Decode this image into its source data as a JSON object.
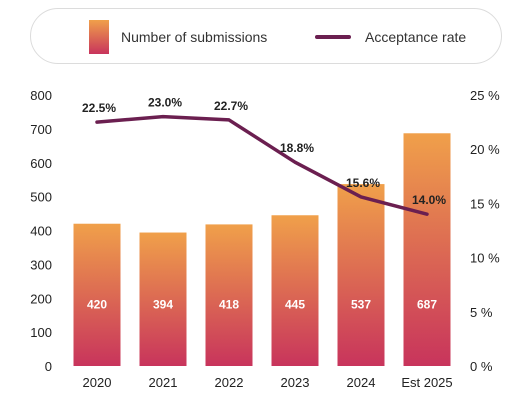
{
  "legend": {
    "bar_label": "Number of submissions",
    "line_label": "Acceptance rate"
  },
  "colors": {
    "bar_top": "#f0a04a",
    "bar_bottom": "#c8345c",
    "line": "#6b1f50",
    "text": "#222222"
  },
  "chart_data": {
    "type": "bar",
    "categories": [
      "2020",
      "2021",
      "2022",
      "2023",
      "2024",
      "Est 2025"
    ],
    "series": [
      {
        "name": "Number of submissions",
        "type": "bar",
        "axis": "left",
        "values": [
          420,
          394,
          418,
          445,
          537,
          687
        ],
        "data_labels": [
          "420",
          "394",
          "418",
          "445",
          "537",
          "687"
        ]
      },
      {
        "name": "Acceptance rate",
        "type": "line",
        "axis": "right",
        "values": [
          22.5,
          23.0,
          22.7,
          18.8,
          15.6,
          14.0
        ],
        "data_labels": [
          "22.5%",
          "23.0%",
          "22.7%",
          "18.8%",
          "15.6%",
          "14.0%"
        ]
      }
    ],
    "y_left": {
      "min": 0,
      "max": 800,
      "ticks": [
        "0",
        "100",
        "200",
        "300",
        "400",
        "500",
        "600",
        "700",
        "800"
      ]
    },
    "y_right": {
      "min": 0,
      "max": 25,
      "ticks": [
        "0 %",
        "5 %",
        "10 %",
        "15 %",
        "20 %",
        "25 %"
      ]
    },
    "grid": false,
    "legend_position": "top"
  }
}
